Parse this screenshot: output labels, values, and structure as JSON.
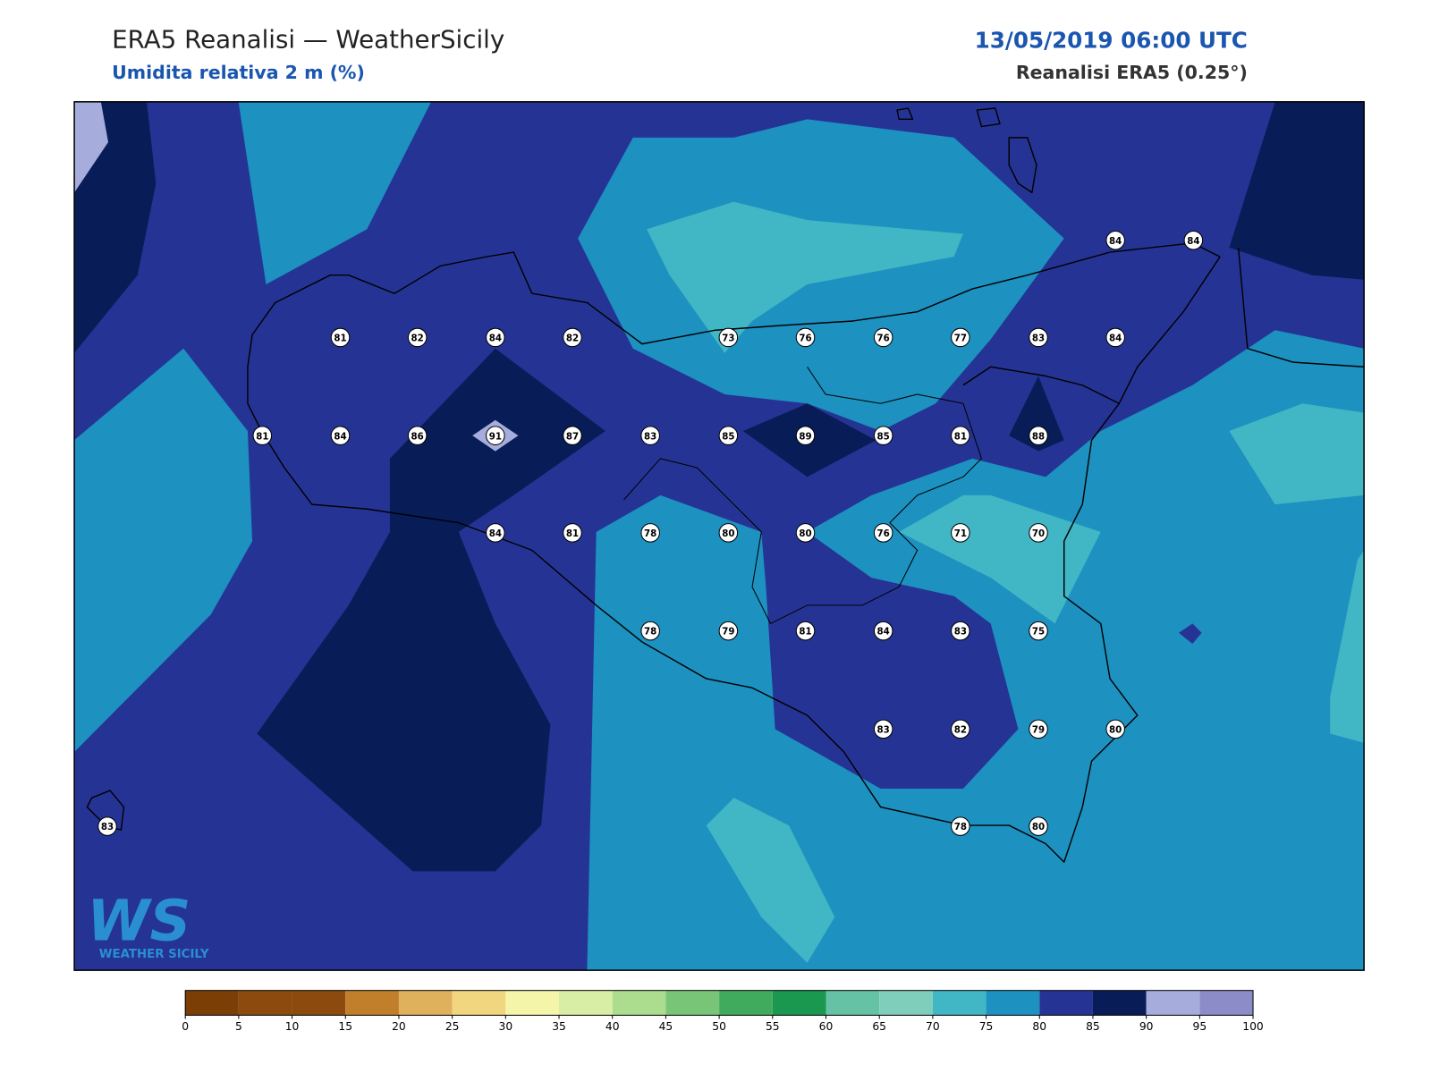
{
  "header": {
    "title": "ERA5 Reanalisi — WeatherSicily",
    "subtitle": "Umidita relativa 2 m (%)",
    "date": "13/05/2019 06:00 UTC",
    "source": "Reanalisi ERA5 (0.25°)"
  },
  "stations": [
    84,
    84,
    81,
    82,
    84,
    82,
    73,
    76,
    76,
    77,
    83,
    84,
    81,
    84,
    86,
    91,
    87,
    83,
    85,
    89,
    85,
    81,
    88,
    84,
    81,
    78,
    80,
    80,
    76,
    71,
    70,
    78,
    79,
    81,
    84,
    83,
    75,
    83,
    82,
    79,
    80,
    83,
    78,
    80
  ],
  "colorbar": {
    "ticks": [
      0,
      5,
      10,
      15,
      20,
      25,
      30,
      35,
      40,
      45,
      50,
      55,
      60,
      65,
      70,
      75,
      80,
      85,
      90,
      95,
      100
    ],
    "colors": [
      "#7b3f06",
      "#8c4a0e",
      "#8c4a0e",
      "#c17f2c",
      "#e0b15c",
      "#f1d57f",
      "#f5f5a9",
      "#d8eea4",
      "#acdd8e",
      "#79c578",
      "#41ab5d",
      "#1a9850",
      "#66c2a4",
      "#7fcdbb",
      "#41b6c4",
      "#1d91c0",
      "#253494",
      "#081d58",
      "#a6acdc",
      "#8c8cc8"
    ]
  },
  "logo": {
    "mark": "WS",
    "name": "WEATHER SICILY"
  }
}
